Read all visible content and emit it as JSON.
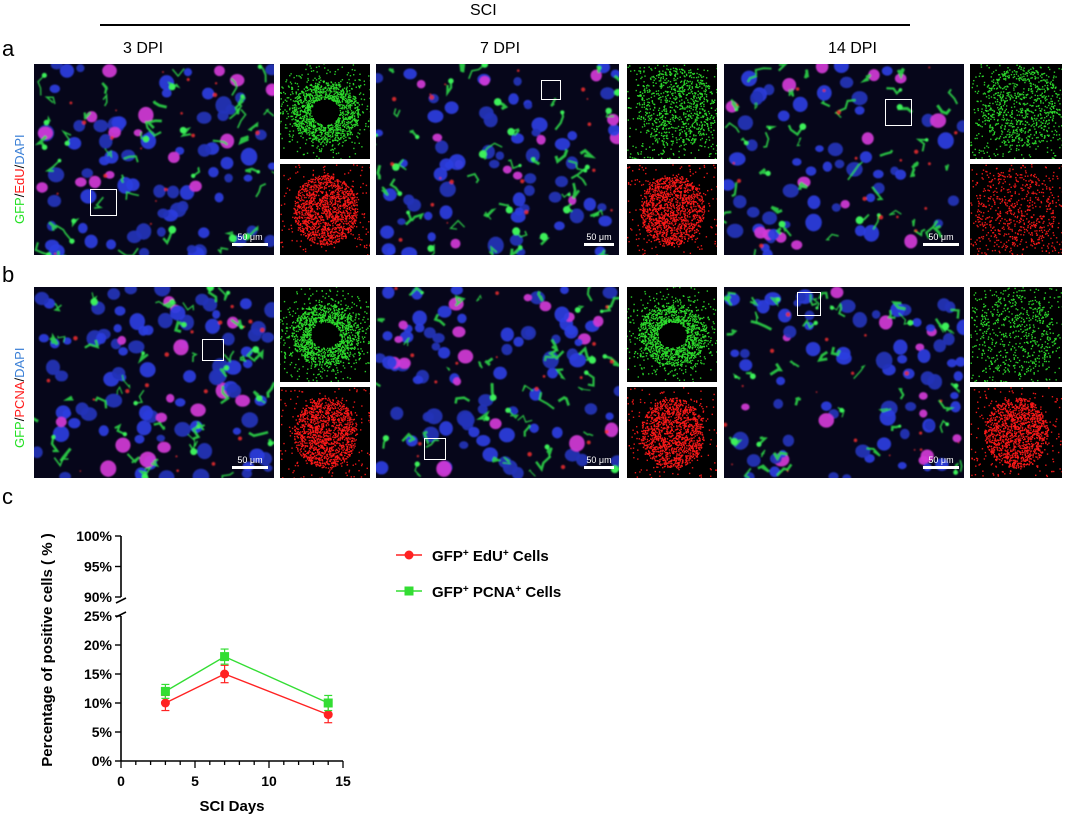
{
  "header": {
    "group_label": "SCI"
  },
  "panels": {
    "a": "a",
    "b": "b",
    "c": "c"
  },
  "columns": [
    "3 DPI",
    "7 DPI",
    "14 DPI"
  ],
  "row_labels": {
    "a": {
      "green": "GFP",
      "sep1": "/",
      "red": "EdU",
      "sep2": "/",
      "blue": "DAPI"
    },
    "b": {
      "green": "GFP",
      "sep1": "/",
      "red": "PCNA",
      "sep2": "/",
      "blue": "DAPI"
    }
  },
  "scale_bar": "50 μm",
  "colors": {
    "green": "#22e022",
    "red": "#ff1a1a",
    "blue": "#3a7fd6",
    "edu_series": "#ff2222",
    "pcna_series": "#33dd33"
  },
  "chart_data": {
    "type": "line",
    "xlabel": "SCI Days",
    "ylabel": "Percentage of positive cells ( % )",
    "x_ticks": [
      "0",
      "5",
      "10",
      "15"
    ],
    "y_ticks_lower": [
      "0%",
      "5%",
      "10%",
      "15%",
      "20%",
      "25%"
    ],
    "y_ticks_upper": [
      "90%",
      "95%",
      "100%"
    ],
    "xlim": [
      0,
      15
    ],
    "ylim_lower": [
      0,
      25
    ],
    "ylim_upper": [
      90,
      100
    ],
    "axis_break": true,
    "legend_position": "top-right",
    "series": [
      {
        "name_parts": [
          "GFP",
          "+",
          " EdU",
          "+",
          " Cells"
        ],
        "marker": "circle",
        "color": "#ff2222",
        "x": [
          3,
          7,
          14
        ],
        "values": [
          10,
          15,
          8
        ],
        "errors": [
          1.3,
          1.5,
          1.4
        ]
      },
      {
        "name_parts": [
          "GFP",
          "+",
          " PCNA",
          "+",
          " Cells"
        ],
        "marker": "square",
        "color": "#33dd33",
        "x": [
          3,
          7,
          14
        ],
        "values": [
          12,
          18,
          10
        ],
        "errors": [
          1.2,
          1.3,
          1.3
        ]
      }
    ]
  }
}
